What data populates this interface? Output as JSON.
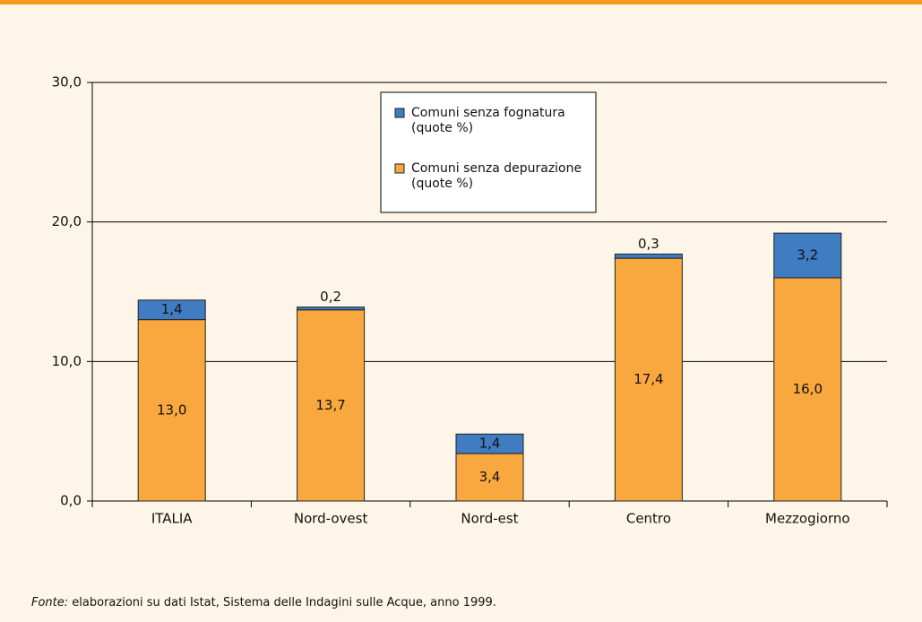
{
  "chart_data": {
    "type": "stacked_bar",
    "categories": [
      "ITALIA",
      "Nord-ovest",
      "Nord-est",
      "Centro",
      "Mezzogiorno"
    ],
    "series": [
      {
        "name": "Comuni senza depurazione (quote %)",
        "color": "#f8a83e",
        "values": [
          13.0,
          13.7,
          3.4,
          17.4,
          16.0
        ],
        "value_labels": [
          "13,0",
          "13,7",
          "3,4",
          "17,4",
          "16,0"
        ]
      },
      {
        "name": "Comuni senza fognatura (quote %)",
        "color": "#3f7cc1",
        "values": [
          1.4,
          0.2,
          1.4,
          0.3,
          3.2
        ],
        "value_labels": [
          "1,4",
          "0,2",
          "1,4",
          "0,3",
          "3,2"
        ]
      }
    ],
    "ylim": [
      0,
      30
    ],
    "yticks": [
      {
        "value": 0,
        "label": "0,0"
      },
      {
        "value": 10,
        "label": "10,0"
      },
      {
        "value": 20,
        "label": "20,0"
      },
      {
        "value": 30,
        "label": "30,0"
      }
    ],
    "grid": true
  },
  "footnote": {
    "label": "Fonte:",
    "text": "elaborazioni su dati Istat, Sistema delle Indagini sulle Acque, anno 1999."
  }
}
